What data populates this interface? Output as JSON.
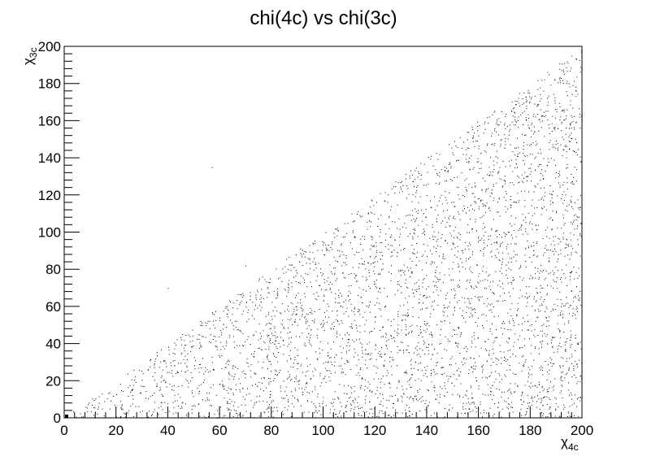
{
  "chart_data": {
    "type": "scatter",
    "title": "chi(4c) vs chi(3c)",
    "xlabel": {
      "symbol": "χ",
      "sub": "4c"
    },
    "ylabel": {
      "symbol": "χ",
      "sub": "3c"
    },
    "xlim": [
      0,
      200
    ],
    "ylim": [
      0,
      200
    ],
    "xticks": [
      0,
      20,
      40,
      60,
      80,
      100,
      120,
      140,
      160,
      180,
      200
    ],
    "yticks": [
      0,
      20,
      40,
      60,
      80,
      100,
      120,
      140,
      160,
      180,
      200
    ],
    "grid": false,
    "legend": "none",
    "marker_color": "#000000",
    "region": {
      "description_points": "dense uniform scatter bounded by y <= x, 0 <= x <= 200",
      "boundary_line": {
        "x": [
          0,
          200
        ],
        "y": [
          0,
          200
        ]
      }
    },
    "outliers": [
      {
        "x": 57,
        "y": 135
      },
      {
        "x": 40,
        "y": 70
      },
      {
        "x": 70,
        "y": 82
      }
    ],
    "origin_marker": {
      "x": 1,
      "y": 0.5
    }
  }
}
